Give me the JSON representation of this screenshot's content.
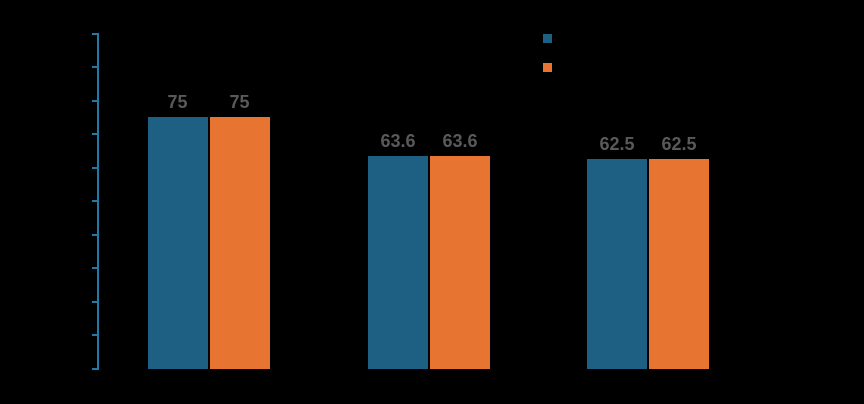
{
  "chart_data": {
    "type": "bar",
    "title": "",
    "categories": [
      "",
      "",
      ""
    ],
    "series": [
      {
        "name": "",
        "color": "#1d6083",
        "values": [
          75,
          63.6,
          62.5
        ]
      },
      {
        "name": "",
        "color": "#e87431",
        "values": [
          75,
          63.6,
          62.5
        ]
      }
    ],
    "data_labels": [
      [
        "75",
        "63.6",
        "62.5"
      ],
      [
        "75",
        "63.6",
        "62.5"
      ]
    ],
    "ylim": [
      0,
      100
    ],
    "y_ticks": [
      0,
      10,
      20,
      30,
      40,
      50,
      60,
      70,
      80,
      90,
      100
    ],
    "y_tick_labels_visible": false,
    "x_tick_labels_visible": false,
    "grid": false,
    "legend_position": "top-right",
    "legend_text_visible": false,
    "colors": {
      "axis": "#2278a8",
      "data_label": "#595959",
      "background": "#000000"
    }
  }
}
